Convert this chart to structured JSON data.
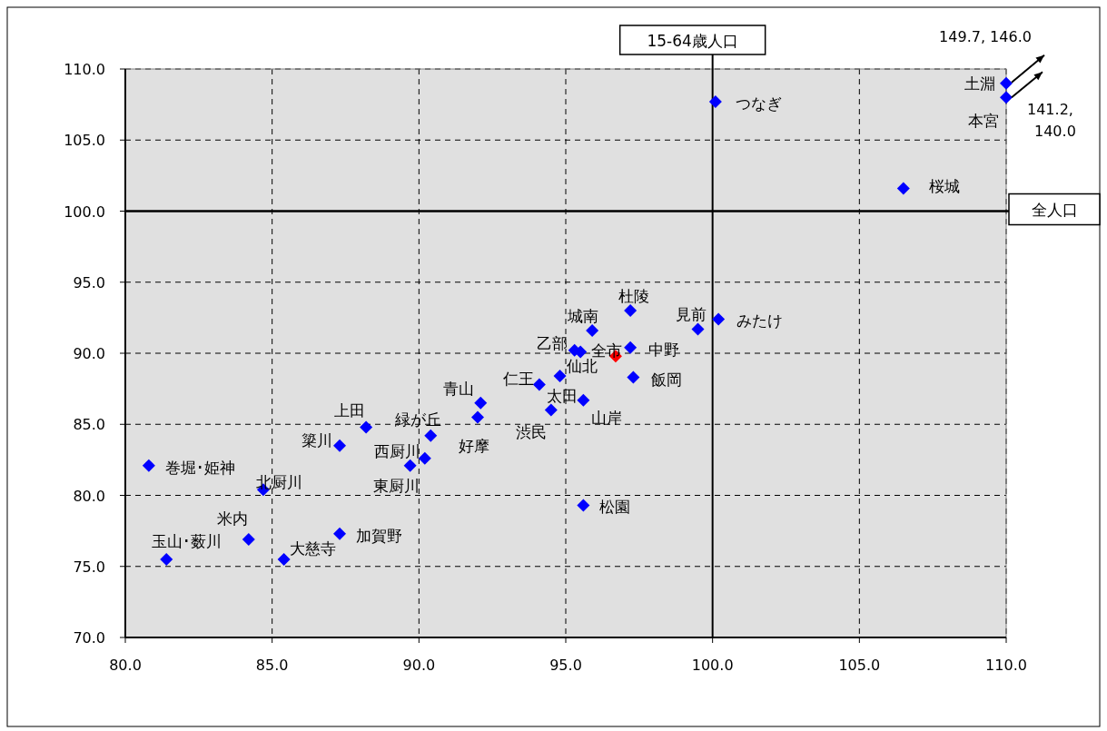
{
  "chart_data": {
    "type": "scatter",
    "marker": "diamond",
    "grid": true,
    "x": [
      100.1,
      110,
      110,
      106.5,
      97.2,
      99.5,
      100.2,
      95.9,
      97.2,
      96.7,
      95.3,
      95.5,
      94.8,
      94.1,
      95.6,
      94.5,
      97.3,
      92.1,
      92.0,
      90.4,
      90.2,
      89.7,
      88.2,
      87.3,
      80.8,
      84.7,
      84.2,
      81.4,
      85.4,
      87.3,
      95.6
    ],
    "values": [
      107.7,
      109.0,
      108.0,
      101.6,
      93.0,
      91.7,
      92.4,
      91.6,
      90.4,
      89.8,
      90.2,
      90.1,
      88.4,
      87.8,
      86.7,
      86.0,
      88.3,
      86.5,
      85.5,
      84.2,
      82.6,
      82.1,
      84.8,
      83.5,
      82.1,
      80.4,
      76.9,
      75.5,
      75.5,
      77.3,
      79.3
    ],
    "colors": [
      "#0000ff",
      "#0000ff",
      "#0000ff",
      "#0000ff",
      "#0000ff",
      "#0000ff",
      "#0000ff",
      "#0000ff",
      "#0000ff",
      "#ff0000",
      "#0000ff",
      "#0000ff",
      "#0000ff",
      "#0000ff",
      "#0000ff",
      "#0000ff",
      "#0000ff",
      "#0000ff",
      "#0000ff",
      "#0000ff",
      "#0000ff",
      "#0000ff",
      "#0000ff",
      "#0000ff",
      "#0000ff",
      "#0000ff",
      "#0000ff",
      "#0000ff",
      "#0000ff",
      "#0000ff",
      "#0000ff"
    ],
    "xlim": [
      80,
      110
    ],
    "xticks": [
      {
        "value": 80,
        "label": "80.0"
      },
      {
        "value": 85,
        "label": "85.0"
      },
      {
        "value": 90,
        "label": "90.0"
      },
      {
        "value": 95,
        "label": "95.0"
      },
      {
        "value": 100,
        "label": "100.0"
      },
      {
        "value": 105,
        "label": "105.0"
      },
      {
        "value": 110,
        "label": "110.0"
      }
    ],
    "ylim": [
      70,
      110
    ],
    "yticks": [
      {
        "value": 70,
        "label": "70.0"
      },
      {
        "value": 75,
        "label": "75.0"
      },
      {
        "value": 80,
        "label": "80.0"
      },
      {
        "value": 85,
        "label": "85.0"
      },
      {
        "value": 90,
        "label": "90.0"
      },
      {
        "value": 95,
        "label": "95.0"
      },
      {
        "value": 100,
        "label": "100.0"
      },
      {
        "value": 105,
        "label": "105.0"
      },
      {
        "value": 110,
        "label": "110.0"
      }
    ],
    "ref_lines": [
      {
        "axis": "x",
        "value": 100,
        "label": "15-64歳人口",
        "color": "#000000"
      },
      {
        "axis": "y",
        "value": 100,
        "label": "全人口",
        "color": "#000000"
      }
    ],
    "annotations": [
      {
        "text": "つなぎ",
        "x": 100.1,
        "y": 107.7
      },
      {
        "text": "土淵",
        "x": 110,
        "y": 109.0
      },
      {
        "text": "本宮",
        "x": 110,
        "y": 108.0
      },
      {
        "text": "桜城",
        "x": 106.5,
        "y": 101.6
      },
      {
        "text": "杜陵",
        "x": 97.2,
        "y": 93.0
      },
      {
        "text": "見前",
        "x": 99.5,
        "y": 91.7
      },
      {
        "text": "みたけ",
        "x": 100.2,
        "y": 92.4
      },
      {
        "text": "城南",
        "x": 95.9,
        "y": 91.6
      },
      {
        "text": "中野",
        "x": 97.2,
        "y": 90.4
      },
      {
        "text": "全市",
        "x": 96.7,
        "y": 89.8
      },
      {
        "text": "乙部",
        "x": 95.3,
        "y": 90.2
      },
      {
        "text": "仙北",
        "x": 95.5,
        "y": 90.1
      },
      {
        "text": "太田",
        "x": 94.8,
        "y": 88.4
      },
      {
        "text": "仁王",
        "x": 94.1,
        "y": 87.8
      },
      {
        "text": "山岸",
        "x": 95.6,
        "y": 86.7
      },
      {
        "text": "渋民",
        "x": 94.5,
        "y": 86.0
      },
      {
        "text": "飯岡",
        "x": 97.3,
        "y": 88.3
      },
      {
        "text": "青山",
        "x": 92.1,
        "y": 86.5
      },
      {
        "text": "好摩",
        "x": 92.0,
        "y": 85.5
      },
      {
        "text": "緑が丘",
        "x": 90.4,
        "y": 84.2
      },
      {
        "text": "西厨川",
        "x": 90.2,
        "y": 82.6
      },
      {
        "text": "東厨川",
        "x": 89.7,
        "y": 82.1
      },
      {
        "text": "上田",
        "x": 88.2,
        "y": 84.8
      },
      {
        "text": "簗川",
        "x": 87.3,
        "y": 83.5
      },
      {
        "text": "巻堀･姫神",
        "x": 80.8,
        "y": 82.1
      },
      {
        "text": "北厨川",
        "x": 84.7,
        "y": 80.4
      },
      {
        "text": "米内",
        "x": 84.2,
        "y": 76.9
      },
      {
        "text": "玉山･薮川",
        "x": 81.4,
        "y": 75.5
      },
      {
        "text": "大慈寺",
        "x": 85.4,
        "y": 75.5
      },
      {
        "text": "加賀野",
        "x": 87.3,
        "y": 77.3
      },
      {
        "text": "松園",
        "x": 95.6,
        "y": 79.3
      },
      "149.7, 146.0",
      "141.2, 140.0"
    ]
  }
}
